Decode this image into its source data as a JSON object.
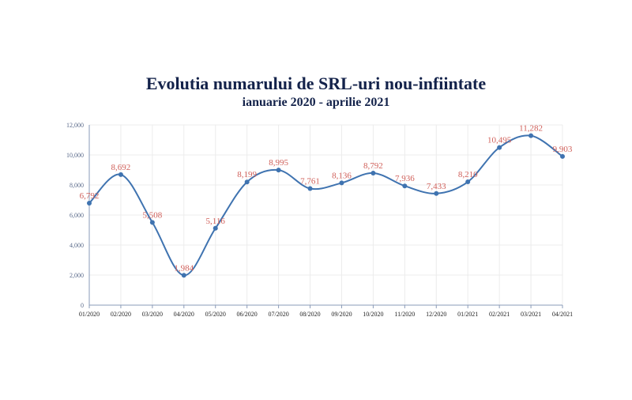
{
  "chart_data": {
    "type": "line",
    "title": "Evolutia numarului de SRL-uri nou-infiintate",
    "subtitle": "ianuarie 2020 - aprilie 2021",
    "categories": [
      "01/2020",
      "02/2020",
      "03/2020",
      "04/2020",
      "05/2020",
      "06/2020",
      "07/2020",
      "08/2020",
      "09/2020",
      "10/2020",
      "11/2020",
      "12/2020",
      "01/2021",
      "02/2021",
      "03/2021",
      "04/2021"
    ],
    "values": [
      6792,
      8692,
      5508,
      1984,
      5116,
      8199,
      8995,
      7761,
      8136,
      8792,
      7936,
      7433,
      8210,
      10495,
      11282,
      9903
    ],
    "value_labels": [
      "6,792",
      "8,692",
      "5,508",
      "1,984",
      "5,116",
      "8,199",
      "8,995",
      "7,761",
      "8,136",
      "8,792",
      "7,936",
      "7,433",
      "8,210",
      "10,495",
      "11,282",
      "9,903"
    ],
    "ylim": [
      0,
      12000
    ],
    "yticks": [
      0,
      2000,
      4000,
      6000,
      8000,
      10000,
      12000
    ],
    "ytick_labels": [
      "0",
      "2,000",
      "4,000",
      "6,000",
      "8,000",
      "10,000",
      "12,000"
    ],
    "grid": true,
    "line_color": "#3f73b0",
    "label_color": "#d0605a",
    "title_color": "#13224a"
  }
}
